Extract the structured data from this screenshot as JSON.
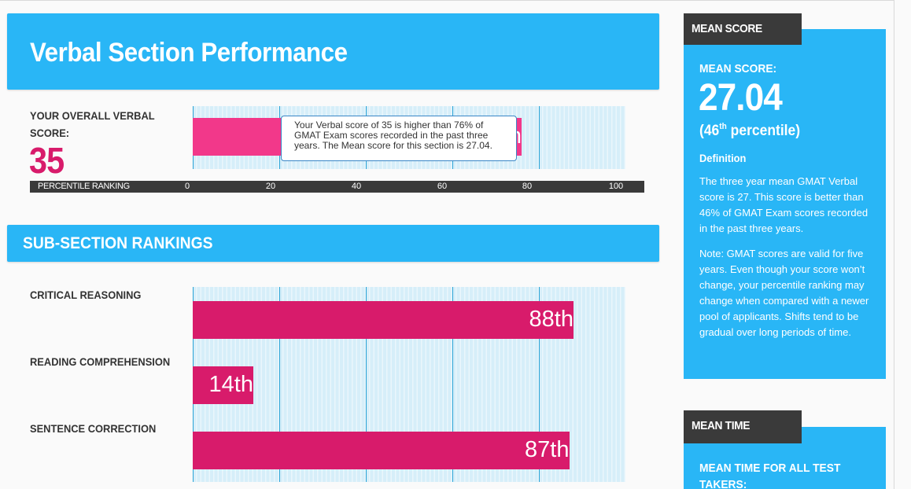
{
  "main": {
    "title": "Verbal Section Performance",
    "overall": {
      "label": "YOUR OVERALL VERBAL SCORE:",
      "score": "35",
      "percentile": 76,
      "percentile_label": "76th",
      "tooltip": "Your Verbal score of 35 is higher than 76% of GMAT Exam scores recorded in the past three years. The Mean score for this section is 27.04."
    },
    "axis": {
      "title": "PERCENTILE RANKING",
      "ticks": [
        "0",
        "20",
        "40",
        "60",
        "80",
        "100"
      ]
    },
    "subsection_title": "SUB-SECTION RANKINGS",
    "subsections": [
      {
        "label": "CRITICAL REASONING",
        "percentile": 88,
        "percentile_label": "88th"
      },
      {
        "label": "READING COMPREHENSION",
        "percentile": 14,
        "percentile_label": "14th"
      },
      {
        "label": "SENTENCE CORRECTION",
        "percentile": 87,
        "percentile_label": "87th"
      }
    ]
  },
  "colors": {
    "header_blue": "#29b6f6",
    "bar_magenta": "#d81b6b",
    "overall_bar_pink": "#f2388a",
    "dark_tab": "#3a3a3a"
  },
  "sidebar": {
    "mean_score": {
      "tab": "MEAN SCORE",
      "heading": "MEAN SCORE:",
      "value": "27.04",
      "percentile_number": "46",
      "percentile_suffix": "th",
      "percentile_rest": " percentile)",
      "definition_heading": "Definition",
      "definition_text": "The three year mean GMAT Verbal score is 27. This score is better than 46% of GMAT Exam scores recorded in the past three years.",
      "note_text": "Note: GMAT scores are valid for five years. Even though your score won’t change, your percentile ranking may change when compared with a newer pool of applicants. Shifts tend to be gradual over long periods of time."
    },
    "mean_time": {
      "tab": "MEAN TIME",
      "heading": "MEAN TIME FOR ALL TEST TAKERS:"
    }
  }
}
